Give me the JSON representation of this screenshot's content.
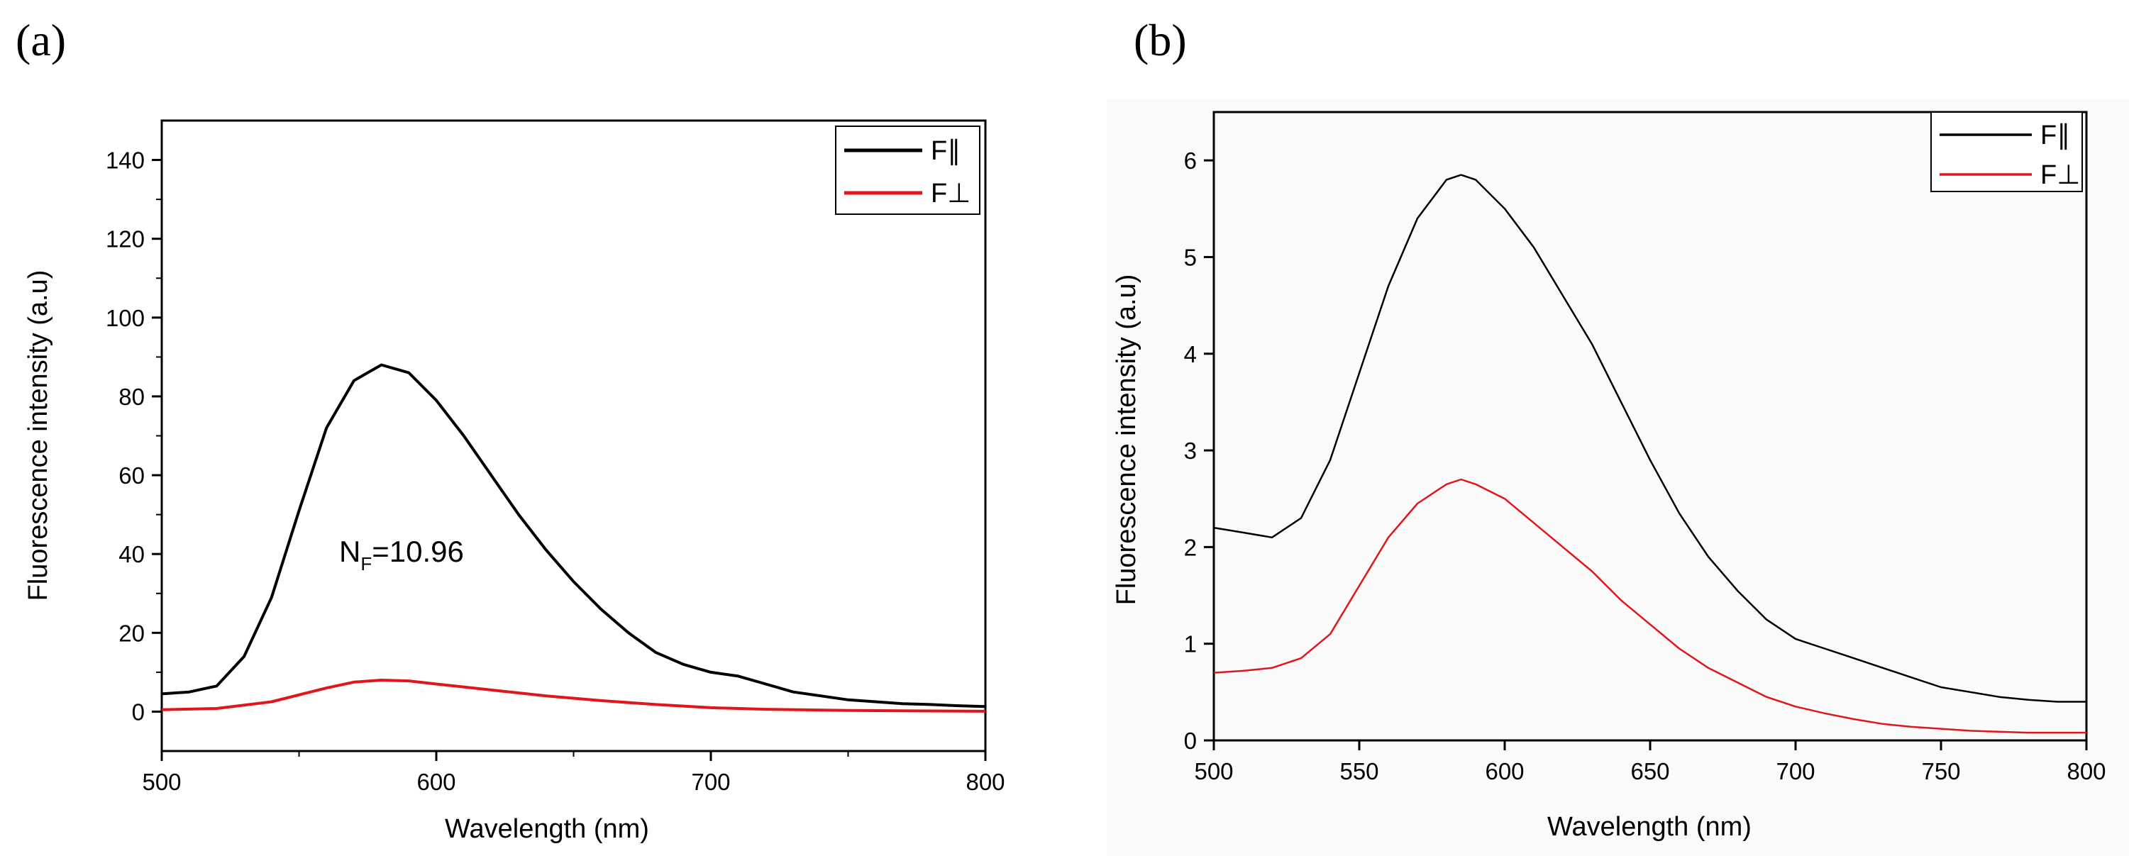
{
  "chart_data": [
    {
      "panel_label": "(a)",
      "type": "line",
      "xlabel": "Wavelength (nm)",
      "ylabel": "Fluorescence intensity (a.u)",
      "xlim": [
        500,
        800
      ],
      "ylim": [
        -10,
        150
      ],
      "xticks": [
        500,
        600,
        700,
        800
      ],
      "yticks": [
        0,
        20,
        40,
        60,
        80,
        100,
        120,
        140
      ],
      "legend_position": "top-right",
      "annotation": {
        "main": "N",
        "sub": "F",
        "rest": "=10.96"
      },
      "series": [
        {
          "name": "F∥",
          "color": "#000000",
          "x": [
            500,
            510,
            520,
            530,
            540,
            550,
            560,
            570,
            580,
            590,
            600,
            610,
            620,
            630,
            640,
            650,
            660,
            670,
            680,
            690,
            700,
            710,
            720,
            730,
            740,
            750,
            760,
            770,
            780,
            790,
            800
          ],
          "values": [
            4.5,
            5,
            6.5,
            14,
            29,
            51,
            72,
            84,
            88,
            86,
            79,
            70,
            60,
            50,
            41,
            33,
            26,
            20,
            15,
            12,
            10,
            9,
            7,
            5,
            4,
            3,
            2.5,
            2,
            1.8,
            1.5,
            1.3
          ]
        },
        {
          "name": "F⊥",
          "color": "#e0161b",
          "x": [
            500,
            520,
            540,
            560,
            570,
            580,
            590,
            600,
            620,
            640,
            660,
            680,
            700,
            720,
            750,
            800
          ],
          "values": [
            0.5,
            0.8,
            2.5,
            6,
            7.5,
            8,
            7.8,
            7,
            5.5,
            4,
            2.8,
            1.8,
            1,
            0.6,
            0.3,
            0.1
          ]
        }
      ]
    },
    {
      "panel_label": "(b)",
      "type": "line",
      "xlabel": "Wavelength (nm)",
      "ylabel": "Fluorescence intensity (a.u)",
      "xlim": [
        500,
        800
      ],
      "ylim": [
        0,
        6.5
      ],
      "xticks": [
        500,
        550,
        600,
        650,
        700,
        750,
        800
      ],
      "yticks": [
        0,
        1,
        2,
        3,
        4,
        5,
        6
      ],
      "legend_position": "top-right",
      "series": [
        {
          "name": "F∥",
          "color": "#000000",
          "x": [
            500,
            510,
            520,
            530,
            540,
            550,
            560,
            570,
            580,
            585,
            590,
            600,
            610,
            620,
            630,
            640,
            650,
            660,
            670,
            680,
            690,
            700,
            710,
            720,
            730,
            740,
            750,
            760,
            770,
            780,
            790,
            800
          ],
          "values": [
            2.2,
            2.15,
            2.1,
            2.3,
            2.9,
            3.8,
            4.7,
            5.4,
            5.8,
            5.85,
            5.8,
            5.5,
            5.1,
            4.6,
            4.1,
            3.5,
            2.9,
            2.35,
            1.9,
            1.55,
            1.25,
            1.05,
            0.95,
            0.85,
            0.75,
            0.65,
            0.55,
            0.5,
            0.45,
            0.42,
            0.4,
            0.4
          ]
        },
        {
          "name": "F⊥",
          "color": "#e0161b",
          "x": [
            500,
            510,
            520,
            530,
            540,
            550,
            560,
            570,
            580,
            585,
            590,
            600,
            610,
            620,
            630,
            640,
            650,
            660,
            670,
            680,
            690,
            700,
            710,
            720,
            730,
            740,
            750,
            760,
            770,
            780,
            790,
            800
          ],
          "values": [
            0.7,
            0.72,
            0.75,
            0.85,
            1.1,
            1.6,
            2.1,
            2.45,
            2.65,
            2.7,
            2.65,
            2.5,
            2.25,
            2.0,
            1.75,
            1.45,
            1.2,
            0.95,
            0.75,
            0.6,
            0.45,
            0.35,
            0.28,
            0.22,
            0.17,
            0.14,
            0.12,
            0.1,
            0.09,
            0.08,
            0.08,
            0.08
          ]
        }
      ]
    }
  ]
}
